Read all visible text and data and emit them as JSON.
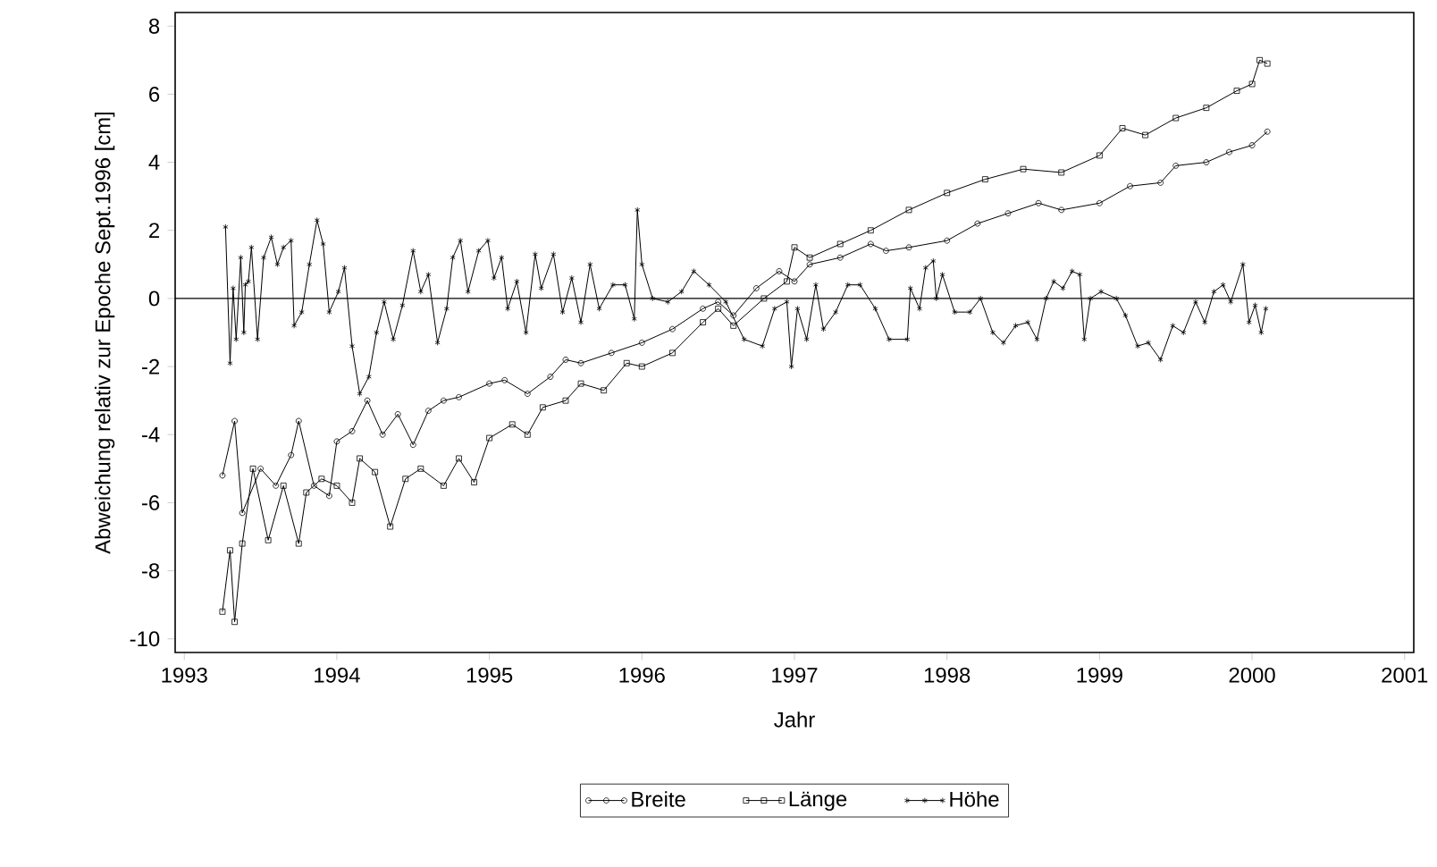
{
  "chart_data": {
    "type": "line",
    "xlabel": "Jahr",
    "ylabel": "Abweichung relativ zur Epoche Sept.1996 [cm]",
    "xlim": [
      1992.94,
      2001.06
    ],
    "ylim": [
      -10.4,
      8.4
    ],
    "xticks": [
      1993,
      1994,
      1995,
      1996,
      1997,
      1998,
      1999,
      2000,
      2001
    ],
    "yticks": [
      -10,
      -8,
      -6,
      -4,
      -2,
      0,
      2,
      4,
      6,
      8
    ],
    "grid": false,
    "legend": "bottom",
    "line_style": "solid",
    "ref_lines": [
      {
        "axis": "y",
        "value": 0,
        "color": "#000000"
      }
    ],
    "series": [
      {
        "name": "Breite",
        "color": "#000000",
        "marker": "circle",
        "x": [
          1993.25,
          1993.33,
          1993.38,
          1993.5,
          1993.6,
          1993.7,
          1993.75,
          1993.85,
          1993.95,
          1994.0,
          1994.1,
          1994.2,
          1994.3,
          1994.4,
          1994.5,
          1994.6,
          1994.7,
          1994.8,
          1995.0,
          1995.1,
          1995.25,
          1995.4,
          1995.5,
          1995.6,
          1995.8,
          1996.0,
          1996.2,
          1996.4,
          1996.5,
          1996.6,
          1996.75,
          1996.9,
          1997.0,
          1997.1,
          1997.3,
          1997.5,
          1997.6,
          1997.75,
          1998.0,
          1998.2,
          1998.4,
          1998.6,
          1998.75,
          1999.0,
          1999.2,
          1999.4,
          1999.5,
          1999.7,
          1999.85,
          2000.0,
          2000.1
        ],
        "values": [
          -5.2,
          -3.6,
          -6.3,
          -5.0,
          -5.5,
          -4.6,
          -3.6,
          -5.5,
          -5.8,
          -4.2,
          -3.9,
          -3.0,
          -4.0,
          -3.4,
          -4.3,
          -3.3,
          -3.0,
          -2.9,
          -2.5,
          -2.4,
          -2.8,
          -2.3,
          -1.8,
          -1.9,
          -1.6,
          -1.3,
          -0.9,
          -0.3,
          -0.1,
          -0.5,
          0.3,
          0.8,
          0.5,
          1.0,
          1.2,
          1.6,
          1.4,
          1.5,
          1.7,
          2.2,
          2.5,
          2.8,
          2.6,
          2.8,
          3.3,
          3.4,
          3.9,
          4.0,
          4.3,
          4.5,
          4.9
        ]
      },
      {
        "name": "Länge",
        "color": "#000000",
        "marker": "square",
        "x": [
          1993.25,
          1993.3,
          1993.33,
          1993.38,
          1993.45,
          1993.55,
          1993.65,
          1993.75,
          1993.8,
          1993.9,
          1994.0,
          1994.1,
          1994.15,
          1994.25,
          1994.35,
          1994.45,
          1994.55,
          1994.7,
          1994.8,
          1994.9,
          1995.0,
          1995.15,
          1995.25,
          1995.35,
          1995.5,
          1995.6,
          1995.75,
          1995.9,
          1996.0,
          1996.2,
          1996.4,
          1996.5,
          1996.6,
          1996.8,
          1996.95,
          1997.0,
          1997.1,
          1997.3,
          1997.5,
          1997.75,
          1998.0,
          1998.25,
          1998.5,
          1998.75,
          1999.0,
          1999.15,
          1999.3,
          1999.5,
          1999.7,
          1999.9,
          2000.0,
          2000.05,
          2000.1
        ],
        "values": [
          -9.2,
          -7.4,
          -9.5,
          -7.2,
          -5.0,
          -7.1,
          -5.5,
          -7.2,
          -5.7,
          -5.3,
          -5.5,
          -6.0,
          -4.7,
          -5.1,
          -6.7,
          -5.3,
          -5.0,
          -5.5,
          -4.7,
          -5.4,
          -4.1,
          -3.7,
          -4.0,
          -3.2,
          -3.0,
          -2.5,
          -2.7,
          -1.9,
          -2.0,
          -1.6,
          -0.7,
          -0.3,
          -0.8,
          0.0,
          0.5,
          1.5,
          1.2,
          1.6,
          2.0,
          2.6,
          3.1,
          3.5,
          3.8,
          3.7,
          4.2,
          5.0,
          4.8,
          5.3,
          5.6,
          6.1,
          6.3,
          7.0,
          6.9
        ]
      },
      {
        "name": "Höhe",
        "color": "#000000",
        "marker": "cross",
        "x": [
          1993.27,
          1993.3,
          1993.32,
          1993.34,
          1993.37,
          1993.39,
          1993.4,
          1993.42,
          1993.44,
          1993.48,
          1993.52,
          1993.57,
          1993.61,
          1993.65,
          1993.7,
          1993.72,
          1993.77,
          1993.82,
          1993.87,
          1993.91,
          1993.95,
          1994.01,
          1994.05,
          1994.1,
          1994.15,
          1994.21,
          1994.26,
          1994.31,
          1994.37,
          1994.43,
          1994.5,
          1994.55,
          1994.6,
          1994.66,
          1994.72,
          1994.76,
          1994.81,
          1994.86,
          1994.93,
          1994.99,
          1995.03,
          1995.08,
          1995.12,
          1995.18,
          1995.24,
          1995.3,
          1995.34,
          1995.42,
          1995.48,
          1995.54,
          1995.6,
          1995.66,
          1995.72,
          1995.81,
          1995.89,
          1995.95,
          1995.97,
          1996.0,
          1996.07,
          1996.17,
          1996.26,
          1996.34,
          1996.44,
          1996.55,
          1996.67,
          1996.79,
          1996.87,
          1996.95,
          1996.98,
          1997.02,
          1997.08,
          1997.14,
          1997.19,
          1997.27,
          1997.35,
          1997.43,
          1997.53,
          1997.62,
          1997.74,
          1997.76,
          1997.82,
          1997.86,
          1997.91,
          1997.93,
          1997.97,
          1998.05,
          1998.15,
          1998.22,
          1998.3,
          1998.37,
          1998.45,
          1998.53,
          1998.59,
          1998.65,
          1998.7,
          1998.76,
          1998.82,
          1998.87,
          1998.9,
          1998.94,
          1999.01,
          1999.11,
          1999.17,
          1999.25,
          1999.32,
          1999.4,
          1999.48,
          1999.55,
          1999.63,
          1999.69,
          1999.75,
          1999.81,
          1999.86,
          1999.94,
          1999.98,
          2000.02,
          2000.06,
          2000.09
        ],
        "values": [
          2.1,
          -1.9,
          0.3,
          -1.2,
          1.2,
          -1.0,
          0.4,
          0.5,
          1.5,
          -1.2,
          1.2,
          1.8,
          1.0,
          1.5,
          1.7,
          -0.8,
          -0.4,
          1.0,
          2.3,
          1.6,
          -0.4,
          0.2,
          0.9,
          -1.4,
          -2.8,
          -2.3,
          -1.0,
          -0.1,
          -1.2,
          -0.2,
          1.4,
          0.2,
          0.7,
          -1.3,
          -0.3,
          1.2,
          1.7,
          0.2,
          1.4,
          1.7,
          0.6,
          1.2,
          -0.3,
          0.5,
          -1.0,
          1.3,
          0.3,
          1.3,
          -0.4,
          0.6,
          -0.7,
          1.0,
          -0.3,
          0.4,
          0.4,
          -0.6,
          2.6,
          1.0,
          0.0,
          -0.1,
          0.2,
          0.8,
          0.4,
          -0.1,
          -1.2,
          -1.4,
          -0.3,
          -0.1,
          -2.0,
          -0.3,
          -1.2,
          0.4,
          -0.9,
          -0.4,
          0.4,
          0.4,
          -0.3,
          -1.2,
          -1.2,
          0.3,
          -0.3,
          0.9,
          1.1,
          0.0,
          0.7,
          -0.4,
          -0.4,
          0.0,
          -1.0,
          -1.3,
          -0.8,
          -0.7,
          -1.2,
          0.0,
          0.5,
          0.3,
          0.8,
          0.7,
          -1.2,
          0.0,
          0.2,
          0.0,
          -0.5,
          -1.4,
          -1.3,
          -1.8,
          -0.8,
          -1.0,
          -0.1,
          -0.7,
          0.2,
          0.4,
          -0.1,
          1.0,
          -0.7,
          -0.2,
          -1.0,
          -0.3
        ]
      }
    ]
  }
}
